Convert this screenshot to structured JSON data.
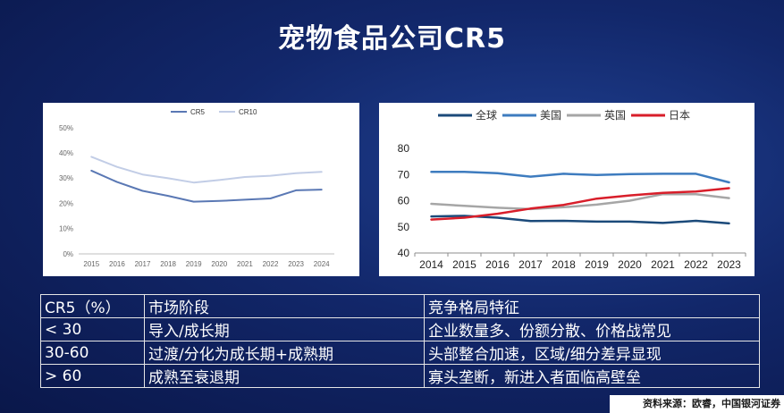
{
  "page": {
    "title": "宠物食品公司CR5",
    "source": "资料来源：欧睿，中国银河证券"
  },
  "chart_data": [
    {
      "type": "line",
      "x": [
        2015,
        2016,
        2017,
        2018,
        2019,
        2020,
        2021,
        2022,
        2023,
        2024
      ],
      "series": [
        {
          "name": "CR5",
          "color": "#5a78b4",
          "values": [
            33,
            28.5,
            25,
            23,
            20.7,
            21,
            21.5,
            22,
            25.2,
            25.5
          ]
        },
        {
          "name": "CR10",
          "color": "#c2cde6",
          "values": [
            38.5,
            34.5,
            31.5,
            30,
            28.3,
            29.3,
            30.5,
            31,
            32,
            32.5
          ]
        }
      ],
      "ylim": [
        0,
        50
      ],
      "yticks": [
        "0%",
        "10%",
        "20%",
        "30%",
        "40%",
        "50%"
      ],
      "ytick_values": [
        0,
        10,
        20,
        30,
        40,
        50
      ],
      "legend": "top-center"
    },
    {
      "type": "line",
      "x": [
        2014,
        2015,
        2016,
        2017,
        2018,
        2019,
        2020,
        2021,
        2022,
        2023
      ],
      "series": [
        {
          "name": "全球",
          "color": "#1b4a7a",
          "values": [
            54,
            54.2,
            53.5,
            52.2,
            52.3,
            52,
            52,
            51.5,
            52.3,
            51.3
          ]
        },
        {
          "name": "美国",
          "color": "#3e7cbf",
          "values": [
            71,
            71,
            70.5,
            69.2,
            70.3,
            69.8,
            70.2,
            70.3,
            70.3,
            67
          ]
        },
        {
          "name": "英国",
          "color": "#a6a6a6",
          "values": [
            58.8,
            58,
            57.3,
            56.8,
            57.5,
            58.5,
            60,
            62.5,
            62.5,
            61
          ]
        },
        {
          "name": "日本",
          "color": "#d81e2a",
          "values": [
            52.8,
            53.5,
            55,
            57,
            58.4,
            60.8,
            62,
            63,
            63.5,
            64.8
          ]
        }
      ],
      "ylim": [
        40,
        80
      ],
      "ytick_values": [
        40,
        50,
        60,
        70,
        80
      ],
      "legend": "top-center"
    }
  ],
  "table": {
    "header": [
      "CR5（%）",
      "市场阶段",
      "竞争格局特征"
    ],
    "rows": [
      [
        "< 30",
        "导入/成长期",
        "企业数量多、份额分散、价格战常见"
      ],
      [
        "30-60",
        "过渡/分化为成长期+成熟期",
        "头部整合加速，区域/细分差异显现"
      ],
      [
        "> 60",
        "成熟至衰退期",
        "寡头垄断，新进入者面临高壁垒"
      ]
    ]
  }
}
